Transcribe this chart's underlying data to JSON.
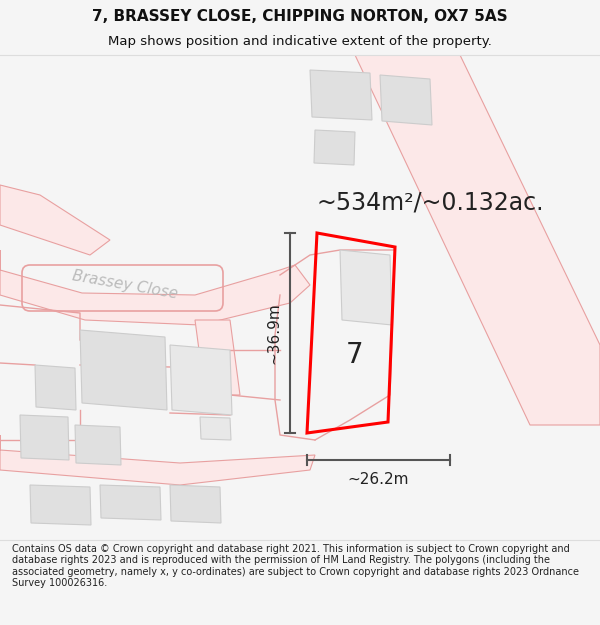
{
  "title_line1": "7, BRASSEY CLOSE, CHIPPING NORTON, OX7 5AS",
  "title_line2": "Map shows position and indicative extent of the property.",
  "area_text": "~534m²/~0.132ac.",
  "number_label": "7",
  "dim_height": "~36.9m",
  "dim_width": "~26.2m",
  "road_label": "Brassey Close",
  "footer_text": "Contains OS data © Crown copyright and database right 2021. This information is subject to Crown copyright and database rights 2023 and is reproduced with the permission of HM Land Registry. The polygons (including the associated geometry, namely x, y co-ordinates) are subject to Crown copyright and database rights 2023 Ordnance Survey 100026316.",
  "bg_color": "#f5f5f5",
  "map_bg": "#ffffff",
  "plot_outline_color": "#ff0000",
  "road_fill": "#fce8e8",
  "road_edge": "#e8a0a0",
  "dim_line_color": "#555555",
  "text_dark": "#222222",
  "text_gray": "#aaaaaa",
  "building_fill": "#e0e0e0",
  "building_edge": "#cccccc",
  "pink_line": "#e8a0a0"
}
